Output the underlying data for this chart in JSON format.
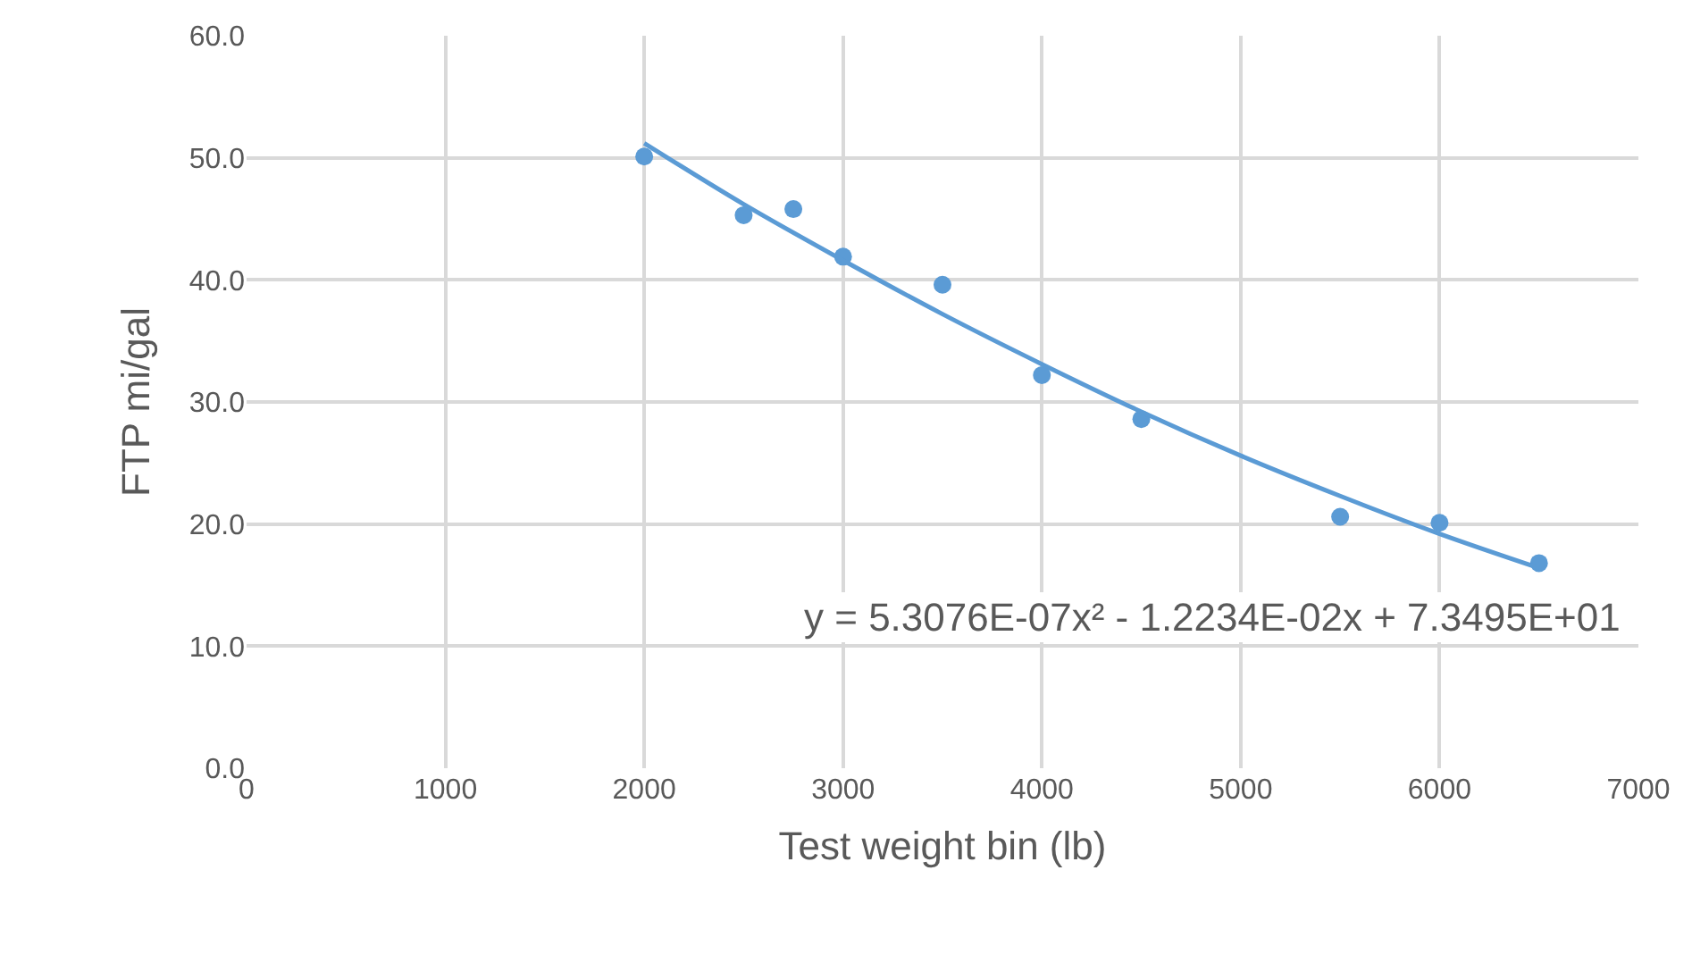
{
  "chart_data": {
    "type": "scatter",
    "xlabel": "Test weight bin (lb)",
    "ylabel": "FTP mi/gal",
    "series": [
      {
        "color": "#5b9bd5",
        "marker": "circle",
        "x": [
          2000,
          2500,
          2750,
          3000,
          3500,
          4000,
          4500,
          5500,
          6000,
          6500
        ],
        "values": [
          50.1,
          45.3,
          45.8,
          41.9,
          39.6,
          32.2,
          28.6,
          20.6,
          20.1,
          16.8
        ]
      },
      {
        "type": "line",
        "color": "#5b9bd5",
        "line_style": "solid",
        "marker": "none",
        "x": [
          2000,
          2500,
          3000,
          3500,
          4000,
          4500,
          5000,
          5500,
          6000,
          6500
        ],
        "values": [
          51.2,
          46.2,
          41.6,
          37.2,
          33.1,
          29.2,
          25.6,
          22.3,
          19.2,
          16.4
        ]
      }
    ],
    "annotations": [
      "y = 5.3076E-07x² - 1.2234E-02x + 7.3495E+01"
    ],
    "xlim": [
      0,
      7000
    ],
    "xticks": [
      0,
      1000,
      2000,
      3000,
      4000,
      5000,
      6000,
      7000
    ],
    "ylim": [
      0,
      60
    ],
    "yticks": [
      {
        "value": 0,
        "label": "0.0"
      },
      {
        "value": 10,
        "label": "10.0"
      },
      {
        "value": 20,
        "label": "20.0"
      },
      {
        "value": 30,
        "label": "30.0"
      },
      {
        "value": 40,
        "label": "40.0"
      },
      {
        "value": 50,
        "label": "50.0"
      },
      {
        "value": 60,
        "label": "60.0"
      }
    ],
    "grid": true
  }
}
